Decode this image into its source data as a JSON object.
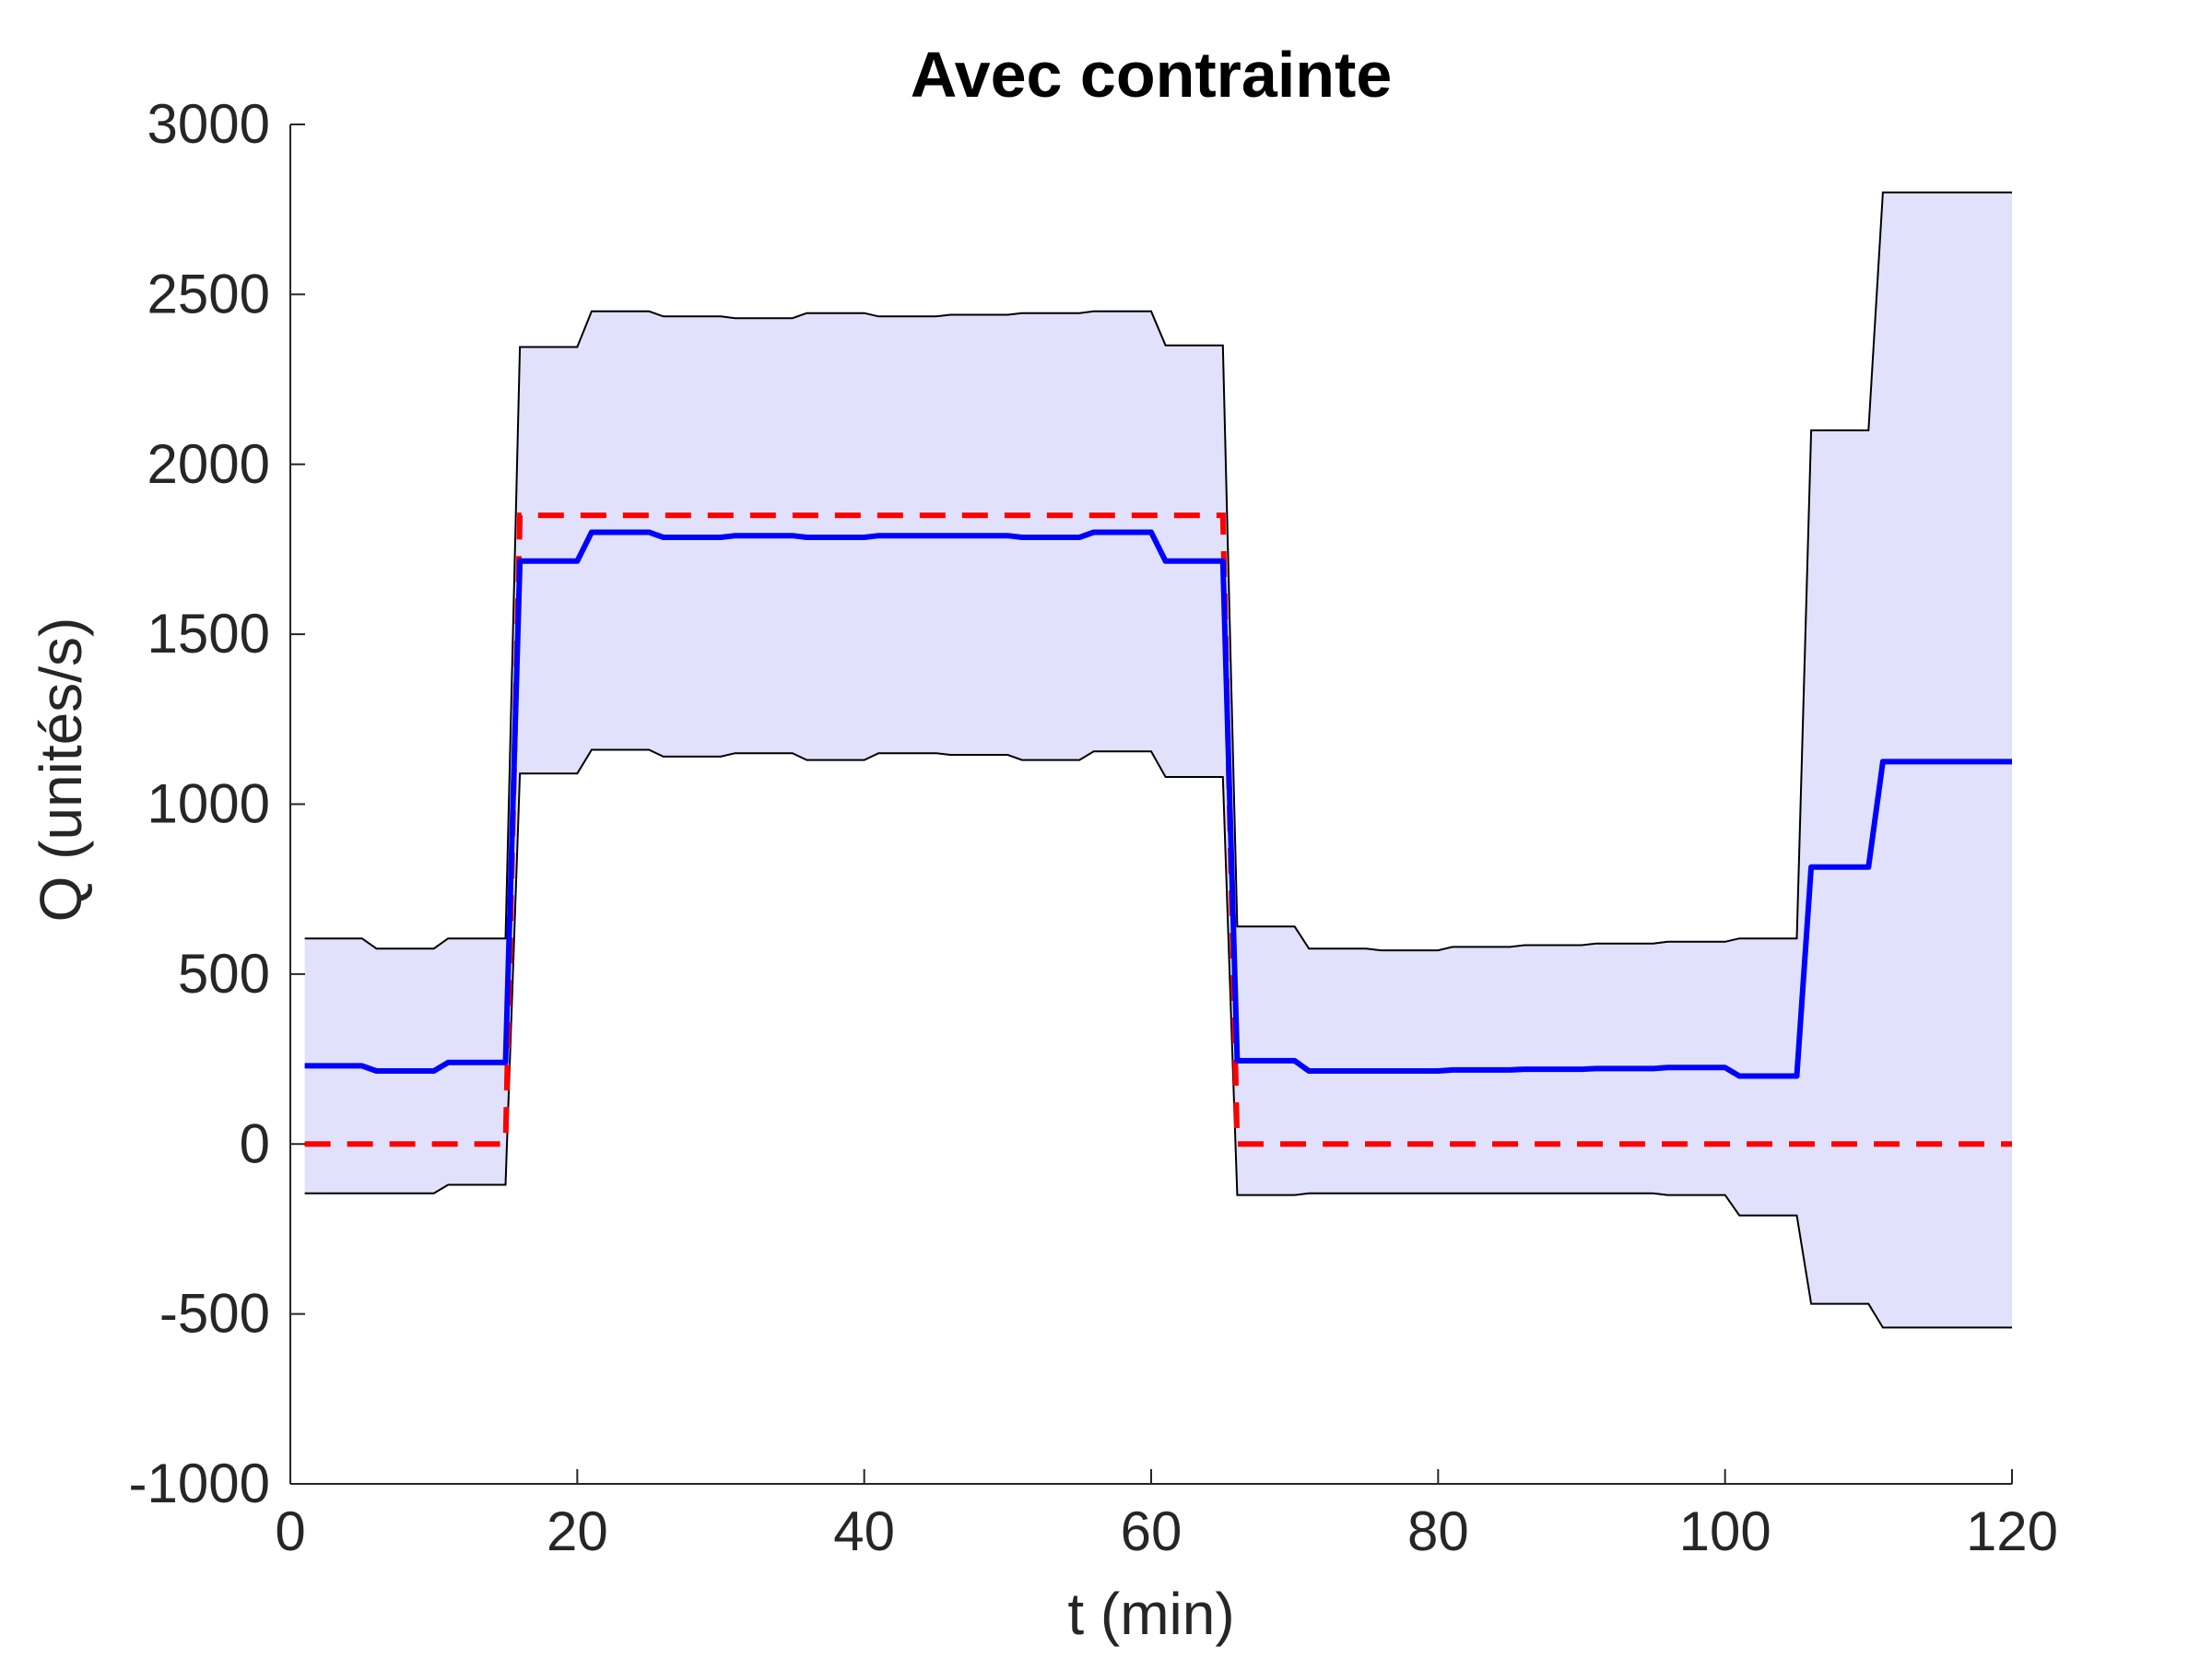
{
  "chart_data": {
    "type": "line",
    "title": "Avec contrainte",
    "xlabel": "t (min)",
    "ylabel": "Q (unités/s)",
    "xlim": [
      0,
      120
    ],
    "ylim": [
      -1000,
      3000
    ],
    "xticks": [
      0,
      20,
      40,
      60,
      80,
      100,
      120
    ],
    "yticks": [
      -1000,
      -500,
      0,
      500,
      1000,
      1500,
      2000,
      2500,
      3000
    ],
    "grid": false,
    "legend": "none",
    "colors": {
      "estimate": "#0000ff",
      "reference": "#ff0000",
      "band_fill": "#e1e1fb",
      "band_edge": "#000000"
    },
    "series": [
      {
        "role": "estimate",
        "style": "solid",
        "x": [
          1,
          5,
          6,
          10,
          11,
          15,
          16,
          20,
          21,
          25,
          26,
          30,
          31,
          35,
          36,
          40,
          41,
          45,
          46,
          50,
          51,
          55,
          56,
          60,
          61,
          65,
          66,
          70,
          71,
          75,
          76,
          80,
          81,
          85,
          86,
          90,
          91,
          95,
          96,
          100,
          101,
          105,
          106,
          110,
          111,
          120
        ],
        "y": [
          230,
          230,
          215,
          215,
          240,
          240,
          1715,
          1715,
          1800,
          1800,
          1785,
          1785,
          1790,
          1790,
          1785,
          1785,
          1790,
          1790,
          1790,
          1790,
          1785,
          1785,
          1800,
          1800,
          1715,
          1715,
          245,
          245,
          215,
          215,
          215,
          215,
          218,
          218,
          220,
          220,
          222,
          222,
          225,
          225,
          200,
          200,
          815,
          815,
          1125,
          1125
        ]
      },
      {
        "role": "reference",
        "style": "dashed",
        "x": [
          1,
          15,
          16,
          65,
          66,
          120
        ],
        "y": [
          0,
          0,
          1850,
          1850,
          0,
          0
        ]
      }
    ],
    "band": {
      "x": [
        1,
        5,
        6,
        10,
        11,
        15,
        16,
        20,
        21,
        25,
        26,
        30,
        31,
        35,
        36,
        40,
        41,
        45,
        46,
        50,
        51,
        55,
        56,
        60,
        61,
        65,
        66,
        70,
        71,
        75,
        76,
        80,
        81,
        85,
        86,
        90,
        91,
        95,
        96,
        100,
        101,
        105,
        106,
        110,
        111,
        120
      ],
      "upper": [
        605,
        605,
        575,
        575,
        605,
        605,
        2345,
        2345,
        2450,
        2450,
        2435,
        2435,
        2430,
        2430,
        2445,
        2445,
        2435,
        2435,
        2440,
        2440,
        2445,
        2445,
        2450,
        2450,
        2350,
        2350,
        640,
        640,
        575,
        575,
        570,
        570,
        580,
        580,
        585,
        585,
        590,
        590,
        595,
        595,
        605,
        605,
        2100,
        2100,
        2800,
        2800
      ],
      "lower": [
        -145,
        -145,
        -145,
        -145,
        -120,
        -120,
        1090,
        1090,
        1160,
        1160,
        1140,
        1140,
        1150,
        1150,
        1130,
        1130,
        1150,
        1150,
        1145,
        1145,
        1130,
        1130,
        1155,
        1155,
        1080,
        1080,
        -150,
        -150,
        -145,
        -145,
        -145,
        -145,
        -145,
        -145,
        -145,
        -145,
        -145,
        -145,
        -150,
        -150,
        -210,
        -210,
        -470,
        -470,
        -540,
        -540
      ]
    }
  }
}
